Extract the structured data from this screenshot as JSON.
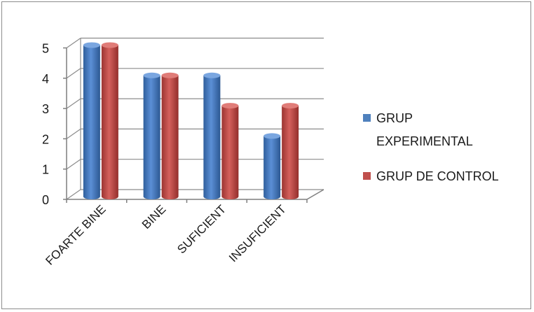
{
  "chart_data": {
    "type": "bar",
    "style": "3d-cylinder",
    "categories": [
      "FOARTE BINE",
      "BINE",
      "SUFICIENT",
      "INSUFICIENT"
    ],
    "series": [
      {
        "name": "GRUP EXPERIMENTAL",
        "values": [
          5,
          4,
          4,
          2
        ],
        "color": "#4f81bd"
      },
      {
        "name": "GRUP DE CONTROL",
        "values": [
          5,
          4,
          3,
          3
        ],
        "color": "#c0504d"
      }
    ],
    "ylim": [
      0,
      5
    ],
    "yticks": [
      "0",
      "1",
      "2",
      "3",
      "4",
      "5"
    ],
    "legend_position": "right",
    "grid": true
  }
}
